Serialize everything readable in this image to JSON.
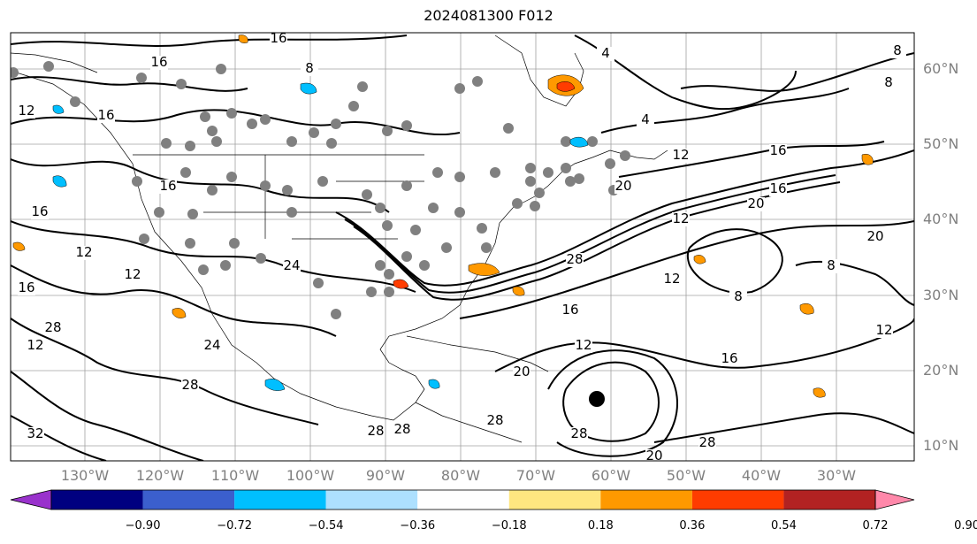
{
  "title": "2024081300 F012",
  "map": {
    "latitude_labels": [
      "60°N",
      "50°N",
      "40°N",
      "30°N",
      "20°N",
      "10°N"
    ],
    "longitude_labels": [
      "130°W",
      "120°W",
      "110°W",
      "100°W",
      "90°W",
      "80°W",
      "70°W",
      "60°W",
      "50°W",
      "40°W",
      "30°W"
    ],
    "contour_labels": [
      "16",
      "16",
      "8",
      "4",
      "8",
      "8",
      "12",
      "16",
      "20",
      "20",
      "16",
      "12",
      "16",
      "12",
      "16",
      "12",
      "28",
      "24",
      "28",
      "32",
      "28",
      "20",
      "28",
      "12",
      "16",
      "16",
      "12",
      "28",
      "20",
      "8",
      "8",
      "12",
      "4",
      "12",
      "16",
      "16",
      "12",
      "24",
      "28",
      "28",
      "28",
      "20"
    ],
    "colors": {
      "contour": "#000000",
      "gridline": "#a0a0a0",
      "station_dot": "#808080",
      "land_border": "#000000"
    }
  },
  "colorbar": {
    "labels": [
      "−0.90",
      "−0.72",
      "−0.54",
      "−0.36",
      "−0.18",
      "0.18",
      "0.36",
      "0.54",
      "0.72",
      "0.90"
    ],
    "colors": [
      "#9932cc",
      "#000080",
      "#3b5fcd",
      "#00bfff",
      "#ade0ff",
      "#ffffff",
      "#ffe680",
      "#ff9900",
      "#ff3c00",
      "#b22222",
      "#ff88aa"
    ]
  }
}
